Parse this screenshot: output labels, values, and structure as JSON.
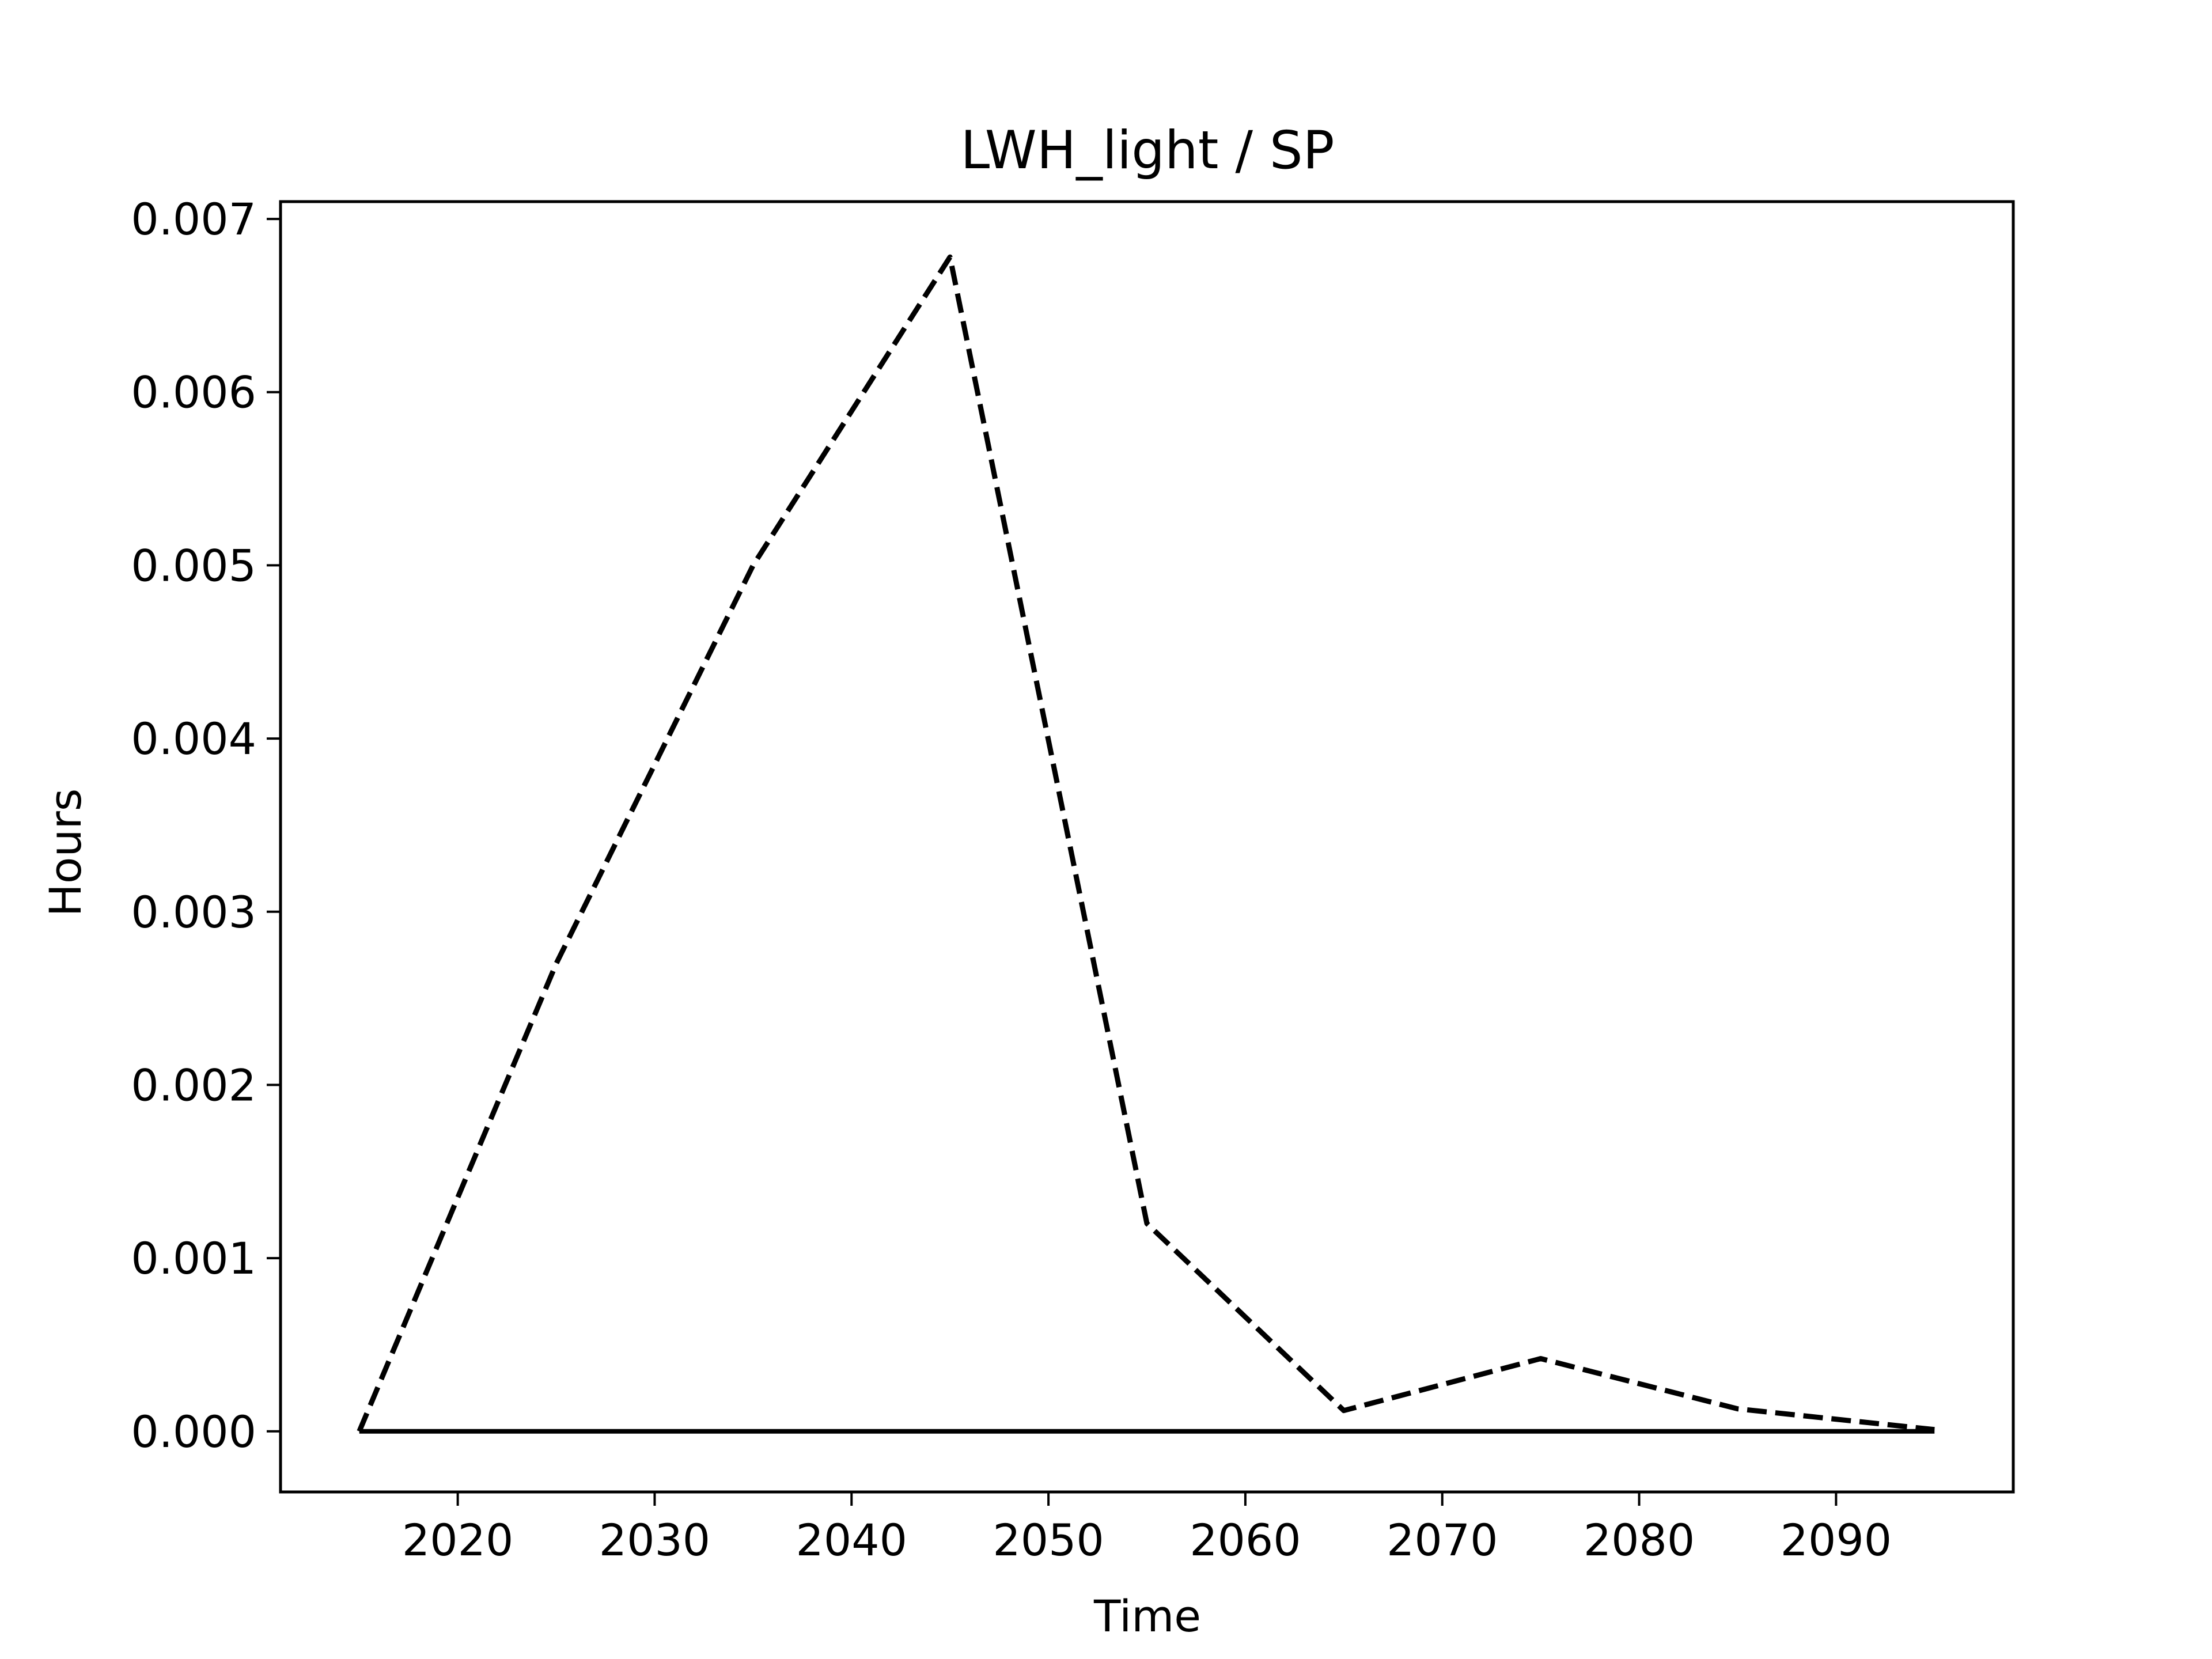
{
  "chart_data": {
    "type": "line",
    "title": "LWH_light / SP",
    "xlabel": "Time",
    "ylabel": "Hours",
    "xlim": [
      2011,
      2099
    ],
    "ylim": [
      -0.00035,
      0.0071
    ],
    "xticks": [
      2020,
      2030,
      2040,
      2050,
      2060,
      2070,
      2080,
      2090
    ],
    "yticks": [
      0.0,
      0.001,
      0.002,
      0.003,
      0.004,
      0.005,
      0.006,
      0.007
    ],
    "ytick_labels": [
      "0.000",
      "0.001",
      "0.002",
      "0.003",
      "0.004",
      "0.005",
      "0.006",
      "0.007"
    ],
    "grid": false,
    "legend": "none",
    "series": [
      {
        "style": "dashed",
        "color": "#000000",
        "x": [
          2015,
          2025,
          2035,
          2045,
          2055,
          2065,
          2075,
          2085,
          2095
        ],
        "y": [
          0.0,
          0.0027,
          0.005,
          0.00678,
          0.0012,
          0.00012,
          0.00042,
          0.00013,
          1e-05
        ]
      },
      {
        "style": "solid",
        "color": "#000000",
        "x": [
          2015,
          2025,
          2035,
          2045,
          2055,
          2065,
          2075,
          2085,
          2095
        ],
        "y": [
          0.0,
          0.0,
          0.0,
          0.0,
          0.0,
          0.0,
          0.0,
          0.0,
          0.0
        ]
      }
    ]
  }
}
